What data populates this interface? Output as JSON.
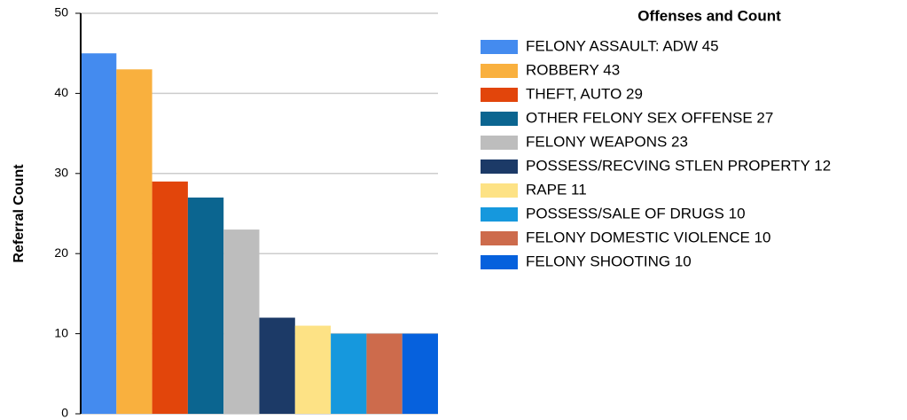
{
  "chart_data": {
    "type": "bar",
    "y_label": "Referral Count",
    "legend_title": "Offenses and Count",
    "series": [
      {
        "name": "FELONY ASSAULT: ADW 45",
        "color": "#448bef",
        "values": [
          45
        ]
      },
      {
        "name": "ROBBERY 43",
        "color": "#f9b03e",
        "values": [
          43
        ]
      },
      {
        "name": "THEFT, AUTO 29",
        "color": "#e2450b",
        "values": [
          29
        ]
      },
      {
        "name": "OTHER FELONY SEX OFFENSE 27",
        "color": "#0b6590",
        "values": [
          27
        ]
      },
      {
        "name": "FELONY WEAPONS 23",
        "color": "#bdbdbd",
        "values": [
          23
        ]
      },
      {
        "name": "POSSESS/RECVING STLEN PROPERTY 12",
        "color": "#1c3a67",
        "values": [
          12
        ]
      },
      {
        "name": "RAPE 11",
        "color": "#fde285",
        "values": [
          11
        ]
      },
      {
        "name": "POSSESS/SALE OF DRUGS 10",
        "color": "#1698dd",
        "values": [
          10
        ]
      },
      {
        "name": "FELONY DOMESTIC VIOLENCE 10",
        "color": "#cd6b4c",
        "values": [
          10
        ]
      },
      {
        "name": "FELONY SHOOTING 10",
        "color": "#0661dd",
        "values": [
          10
        ]
      }
    ],
    "ylim": [
      0,
      50
    ],
    "yticks": [
      0,
      10,
      20,
      30,
      40,
      50
    ],
    "grid": true
  }
}
